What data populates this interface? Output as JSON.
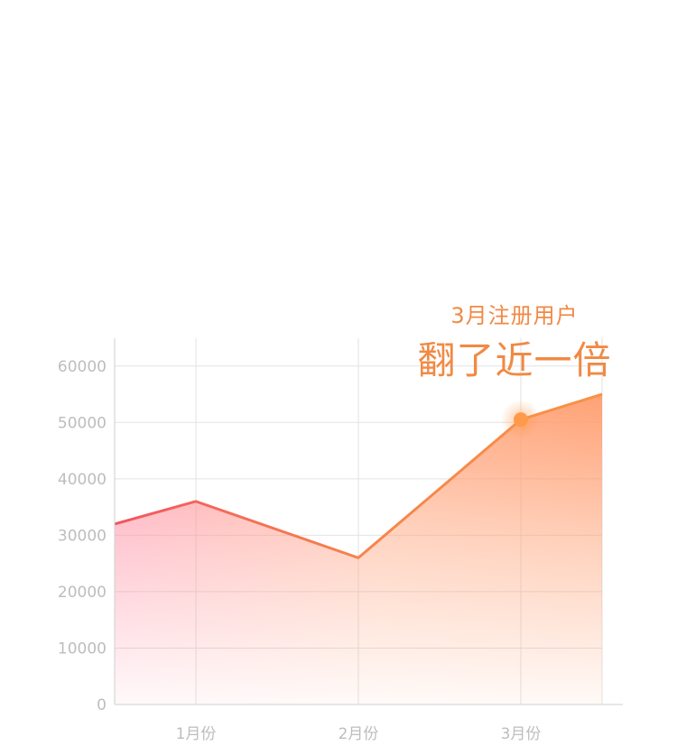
{
  "chart_data": {
    "type": "area",
    "categories": [
      "1月份",
      "2月份",
      "3月份"
    ],
    "x": [
      0.4,
      1,
      2,
      3,
      3.5
    ],
    "series": [
      {
        "values": [
          32000,
          36000,
          26000,
          50500,
          55000
        ]
      }
    ],
    "ylim": [
      0,
      65000
    ],
    "yticks": [
      0,
      10000,
      20000,
      30000,
      40000,
      50000,
      60000
    ],
    "ytick_labels": [
      "0",
      "10000",
      "20000",
      "30000",
      "40000",
      "50000",
      "60000"
    ],
    "grid": true,
    "highlight": {
      "category": "3月份",
      "value": 50500
    },
    "annotation": {
      "line1": "3月注册用户",
      "line2": "翻了近一倍"
    }
  },
  "colors": {
    "line_start": "#f25560",
    "line_end": "#f89245",
    "fill_top": "#ff9a6a",
    "marker": "#ff9a4a",
    "grid": "#e2e2e2",
    "tick_text": "#bdbdbd",
    "annotation": "#f08a45"
  }
}
